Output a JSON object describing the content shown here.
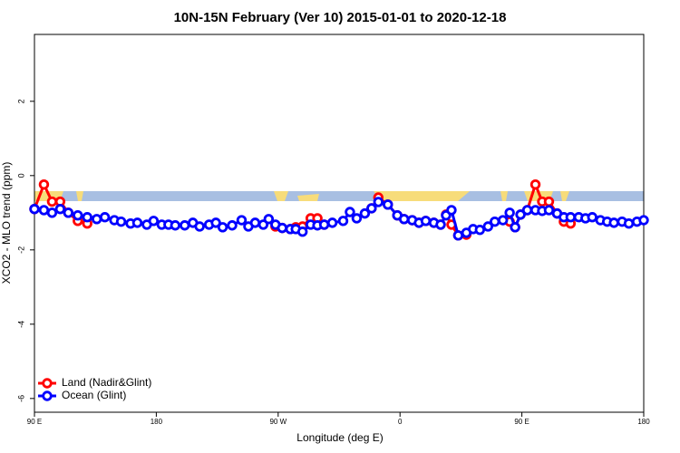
{
  "chart_data": {
    "type": "line",
    "title": "10N-15N February (Ver 10)   2015-01-01 to 2020-12-18",
    "x_label": "Longitude (deg E)",
    "y_label": "XCO2 - MLO trend (ppm)",
    "x": [
      90,
      97,
      103,
      109,
      115,
      122,
      129,
      136,
      142,
      149,
      154,
      161,
      166,
      173,
      178,
      184,
      189,
      194,
      201,
      207,
      212,
      219,
      224,
      229,
      236,
      243,
      248,
      253,
      259,
      263,
      268,
      273,
      279,
      283,
      288,
      294,
      299,
      304,
      310,
      318,
      323,
      328,
      334,
      339,
      344,
      351,
      358,
      363,
      369,
      374,
      379,
      385,
      390,
      394,
      398,
      403,
      409,
      414,
      419,
      425,
      430,
      436,
      441,
      445,
      449,
      454,
      460,
      465,
      470,
      476,
      481,
      486,
      492,
      497,
      502,
      508,
      513,
      518,
      524,
      529,
      535,
      540
    ],
    "series": [
      {
        "name": "Land (Nadir&Glint)",
        "color": "#ff0000",
        "values": [
          -0.9,
          -0.24,
          -0.7,
          -0.7,
          -1.0,
          -1.22,
          -1.29,
          null,
          null,
          null,
          null,
          null,
          null,
          null,
          null,
          null,
          null,
          null,
          null,
          null,
          null,
          null,
          null,
          null,
          null,
          null,
          null,
          null,
          null,
          null,
          -1.37,
          -1.41,
          -1.44,
          -1.39,
          -1.37,
          -1.15,
          -1.15,
          -1.32,
          null,
          null,
          null,
          null,
          null,
          -0.88,
          -0.59,
          -0.78,
          -1.07,
          -1.17,
          -1.2,
          -1.27,
          -1.22,
          -1.27,
          -1.32,
          -1.05,
          -1.32,
          -1.61,
          -1.59,
          null,
          null,
          null,
          null,
          null,
          -1.24,
          -1.39,
          -1.05,
          -0.93,
          -0.24,
          -0.7,
          -0.7,
          -1.02,
          -1.24,
          -1.29,
          null,
          null,
          null,
          null,
          null,
          null,
          null,
          null,
          null,
          null
        ]
      },
      {
        "name": "Ocean (Glint)",
        "color": "#0000ff",
        "values": [
          -0.9,
          -0.93,
          -1.0,
          -0.9,
          -1.0,
          -1.07,
          -1.12,
          -1.17,
          -1.12,
          -1.2,
          -1.24,
          -1.29,
          -1.27,
          -1.32,
          -1.22,
          -1.32,
          -1.32,
          -1.34,
          -1.34,
          -1.27,
          -1.37,
          -1.32,
          -1.27,
          -1.39,
          -1.34,
          -1.2,
          -1.37,
          -1.27,
          -1.32,
          -1.17,
          -1.32,
          -1.41,
          -1.44,
          -1.44,
          -1.51,
          -1.32,
          -1.34,
          -1.32,
          -1.27,
          -1.22,
          -0.98,
          -1.15,
          -1.02,
          -0.88,
          -0.71,
          -0.78,
          -1.07,
          -1.17,
          -1.2,
          -1.27,
          -1.22,
          -1.27,
          -1.32,
          -1.07,
          -0.93,
          -1.61,
          -1.54,
          -1.44,
          -1.46,
          -1.37,
          -1.24,
          -1.2,
          -1.0,
          -1.39,
          -1.05,
          -0.93,
          -0.93,
          -0.95,
          -0.93,
          -1.02,
          -1.12,
          -1.12,
          -1.12,
          -1.15,
          -1.12,
          -1.2,
          -1.24,
          -1.27,
          -1.24,
          -1.29,
          -1.24,
          -1.2
        ]
      }
    ],
    "xlim": [
      90,
      540
    ],
    "xticks": [
      {
        "value": 90,
        "label": "90 E"
      },
      180,
      {
        "value": 270,
        "label": "90 W"
      },
      {
        "value": 360,
        "label": "0"
      },
      {
        "value": 450,
        "label": "90 E"
      },
      {
        "value": 540,
        "label": "180"
      }
    ],
    "ylim": [
      -6.37,
      3.8
    ],
    "yticks": [
      -6,
      -4,
      -2,
      0,
      2
    ],
    "legend": "bottomleft"
  }
}
